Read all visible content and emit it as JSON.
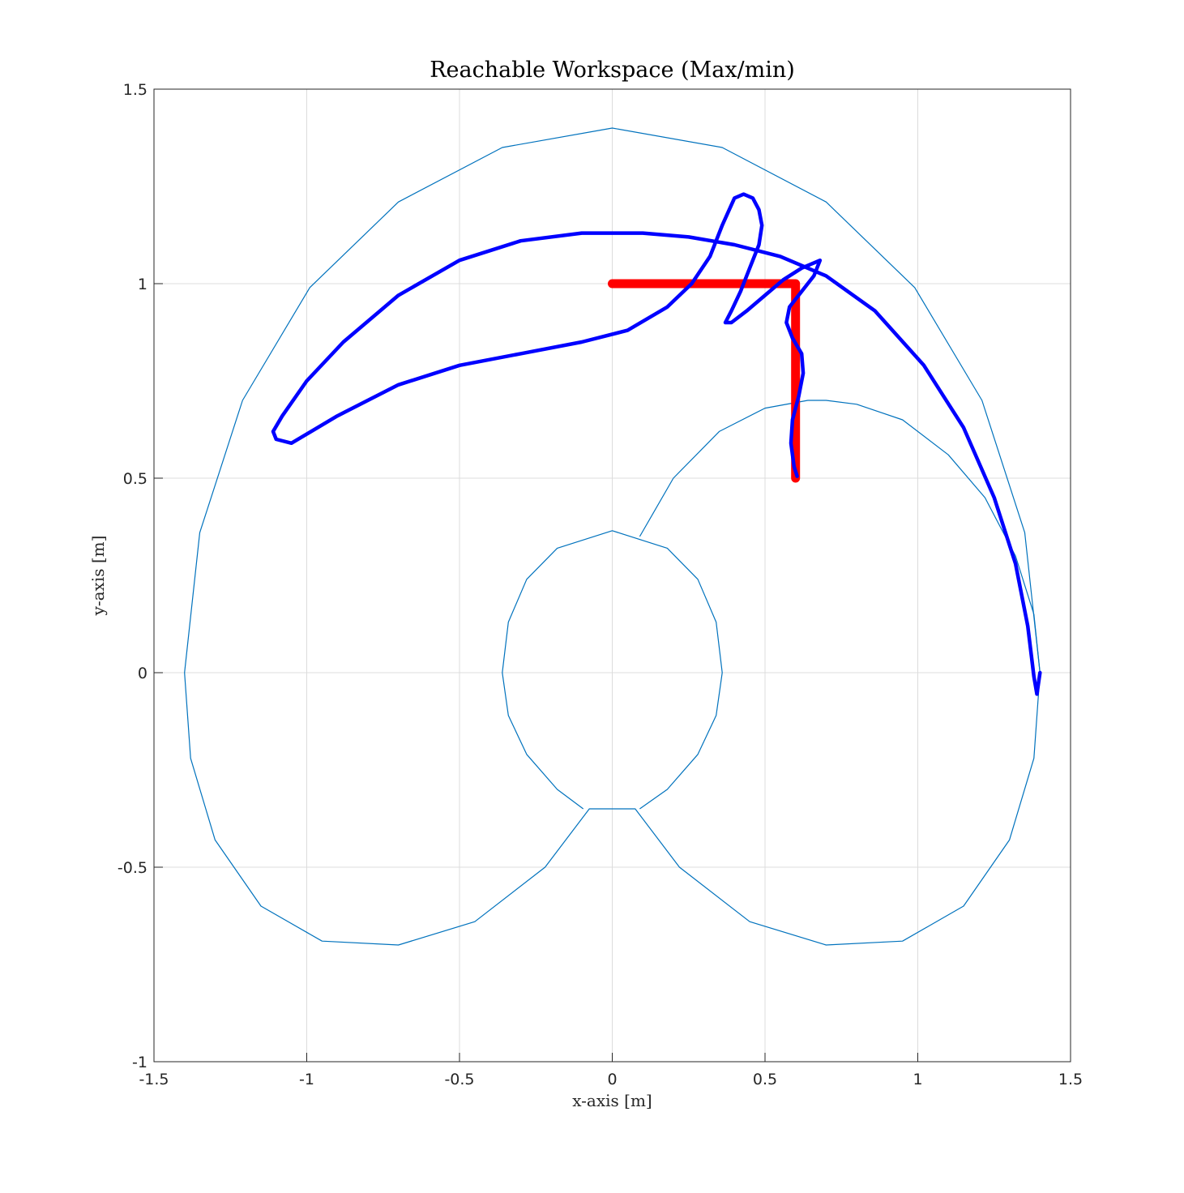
{
  "chart_data": {
    "type": "line",
    "title": "Reachable Workspace (Max/min)",
    "xlabel": "x-axis [m]",
    "ylabel": "y-axis [m]",
    "xlim": [
      -1.5,
      1.5
    ],
    "ylim": [
      -1,
      1.5
    ],
    "xticks": [
      -1.5,
      -1,
      -0.5,
      0,
      0.5,
      1,
      1.5
    ],
    "yticks": [
      -1,
      -0.5,
      0,
      0.5,
      1,
      1.5
    ],
    "xtick_labels": [
      "-1.5",
      "-1",
      "-0.5",
      "0",
      "0.5",
      "1",
      "1.5"
    ],
    "ytick_labels": [
      "-1",
      "-0.5",
      "0",
      "0.5",
      "1",
      "1.5"
    ],
    "grid": true,
    "legend": "none",
    "series": [
      {
        "role": "workspace-boundary",
        "color": "#0072BD",
        "x": [
          1.4,
          1.35,
          1.21,
          0.99,
          0.7,
          0.36,
          0.0,
          -0.36,
          -0.7,
          -0.99,
          -1.21,
          -1.35,
          -1.4,
          -1.38,
          -1.3,
          -1.15,
          -0.95,
          -0.7,
          -0.45,
          -0.22,
          -0.075,
          0.075,
          0.22,
          0.45,
          0.7,
          0.95,
          1.15,
          1.3,
          1.38,
          1.4
        ],
        "y": [
          0.0,
          0.36,
          0.7,
          0.99,
          1.21,
          1.35,
          1.4,
          1.35,
          1.21,
          0.99,
          0.7,
          0.36,
          0.0,
          -0.22,
          -0.43,
          -0.6,
          -0.69,
          -0.7,
          -0.64,
          -0.5,
          -0.35,
          -0.35,
          -0.5,
          -0.64,
          -0.7,
          -0.69,
          -0.6,
          -0.43,
          -0.22,
          0.0
        ]
      },
      {
        "role": "inner-boundary-right",
        "color": "#0072BD",
        "x": [
          0.09,
          0.2,
          0.35,
          0.5,
          0.64,
          0.7,
          0.8,
          0.95,
          1.1,
          1.22,
          1.32,
          1.38,
          1.4
        ],
        "y": [
          0.35,
          0.5,
          0.62,
          0.68,
          0.7,
          0.7,
          0.69,
          0.65,
          0.56,
          0.45,
          0.3,
          0.15,
          0.0
        ]
      },
      {
        "role": "inner-hole",
        "color": "#0072BD",
        "x": [
          0.09,
          0.18,
          0.28,
          0.34,
          0.36,
          0.34,
          0.28,
          0.18,
          0.0,
          -0.18,
          -0.28,
          -0.34,
          -0.36,
          -0.34,
          -0.28,
          -0.18,
          -0.095
        ],
        "y": [
          -0.35,
          -0.3,
          -0.21,
          -0.11,
          0.0,
          0.13,
          0.24,
          0.32,
          0.365,
          0.32,
          0.24,
          0.13,
          0.0,
          -0.11,
          -0.21,
          -0.3,
          -0.35
        ]
      },
      {
        "role": "desired-path",
        "color": "#FF0000",
        "x": [
          0.0,
          0.6,
          0.6
        ],
        "y": [
          1.0,
          1.0,
          0.5
        ]
      },
      {
        "role": "actual-trajectory",
        "color": "#0000FF",
        "x": [
          1.4,
          1.39,
          1.38,
          1.36,
          1.32,
          1.25,
          1.15,
          1.02,
          0.86,
          0.7,
          0.55,
          0.4,
          0.25,
          0.1,
          0.0,
          -0.1,
          -0.3,
          -0.5,
          -0.7,
          -0.88,
          -1.0,
          -1.08,
          -1.11,
          -1.1,
          -1.05,
          -0.9,
          -0.7,
          -0.5,
          -0.3,
          -0.1,
          0.05,
          0.18,
          0.26,
          0.32,
          0.36,
          0.4,
          0.43,
          0.46,
          0.48,
          0.49,
          0.48,
          0.45,
          0.42,
          0.39,
          0.37,
          0.39,
          0.44,
          0.5,
          0.56,
          0.62,
          0.68,
          0.66,
          0.62,
          0.58,
          0.57,
          0.59,
          0.62,
          0.625,
          0.61,
          0.59,
          0.585,
          0.595,
          0.605
        ],
        "y": [
          0.0,
          -0.055,
          -0.01,
          0.12,
          0.28,
          0.45,
          0.63,
          0.79,
          0.93,
          1.02,
          1.07,
          1.1,
          1.12,
          1.13,
          1.13,
          1.13,
          1.11,
          1.06,
          0.97,
          0.85,
          0.75,
          0.66,
          0.62,
          0.6,
          0.59,
          0.66,
          0.74,
          0.79,
          0.82,
          0.85,
          0.88,
          0.94,
          1.0,
          1.07,
          1.15,
          1.22,
          1.23,
          1.22,
          1.19,
          1.15,
          1.1,
          1.04,
          0.98,
          0.93,
          0.9,
          0.9,
          0.93,
          0.97,
          1.01,
          1.04,
          1.06,
          1.02,
          0.98,
          0.94,
          0.9,
          0.86,
          0.82,
          0.77,
          0.71,
          0.65,
          0.59,
          0.53,
          0.505
        ]
      }
    ]
  }
}
